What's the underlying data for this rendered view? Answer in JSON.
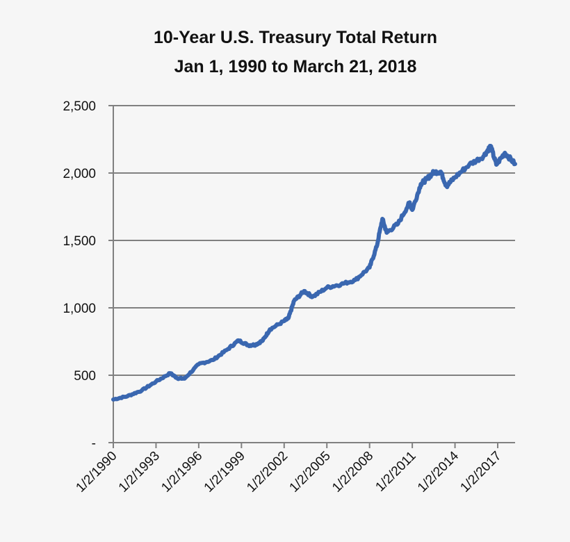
{
  "chart_data": {
    "type": "line",
    "title": [
      "10-Year U.S. Treasury Total Return",
      "Jan 1, 1990 to March 21, 2018"
    ],
    "xlabel": "",
    "ylabel": "",
    "ylim": [
      0,
      2500
    ],
    "xlim": [
      1990.0,
      2018.22
    ],
    "y_ticks": [
      0,
      500,
      1000,
      1500,
      2000,
      2500
    ],
    "y_tick_labels": [
      "-",
      "500",
      "1,000",
      "1,500",
      "2,000",
      "2,500"
    ],
    "x_ticks": [
      1990,
      1993,
      1996,
      1999,
      2002,
      2005,
      2008,
      2011,
      2014,
      2017
    ],
    "x_tick_labels": [
      "1/2/1990",
      "1/2/1993",
      "1/2/1996",
      "1/2/1999",
      "1/2/2002",
      "1/2/2005",
      "1/2/2008",
      "1/2/2011",
      "1/2/2014",
      "1/2/2017"
    ],
    "grid": "horizontal",
    "line_color": "#3a67b0",
    "series": [
      {
        "x": [
          1990.0,
          1991.0,
          1992.0,
          1993.0,
          1994.0,
          1994.5,
          1995.0,
          1996.0,
          1997.0,
          1998.0,
          1998.8,
          1999.5,
          2000.0,
          2000.5,
          2001.0,
          2002.0,
          2002.3,
          2002.7,
          2003.4,
          2004.0,
          2005.0,
          2006.0,
          2007.0,
          2008.0,
          2008.5,
          2008.9,
          2009.2,
          2010.0,
          2010.8,
          2011.0,
          2011.6,
          2012.0,
          2012.5,
          2013.0,
          2013.4,
          2014.0,
          2015.0,
          2016.0,
          2016.5,
          2016.9,
          2017.5,
          2018.22
        ],
        "y": [
          320,
          345,
          387,
          453,
          515,
          478,
          475,
          582,
          613,
          690,
          758,
          722,
          727,
          758,
          840,
          902,
          923,
          1052,
          1124,
          1082,
          1150,
          1175,
          1206,
          1299,
          1454,
          1660,
          1557,
          1624,
          1778,
          1727,
          1918,
          1954,
          2005,
          2010,
          1902,
          1969,
          2062,
          2124,
          2201,
          2062,
          2150,
          2067
        ]
      }
    ]
  }
}
